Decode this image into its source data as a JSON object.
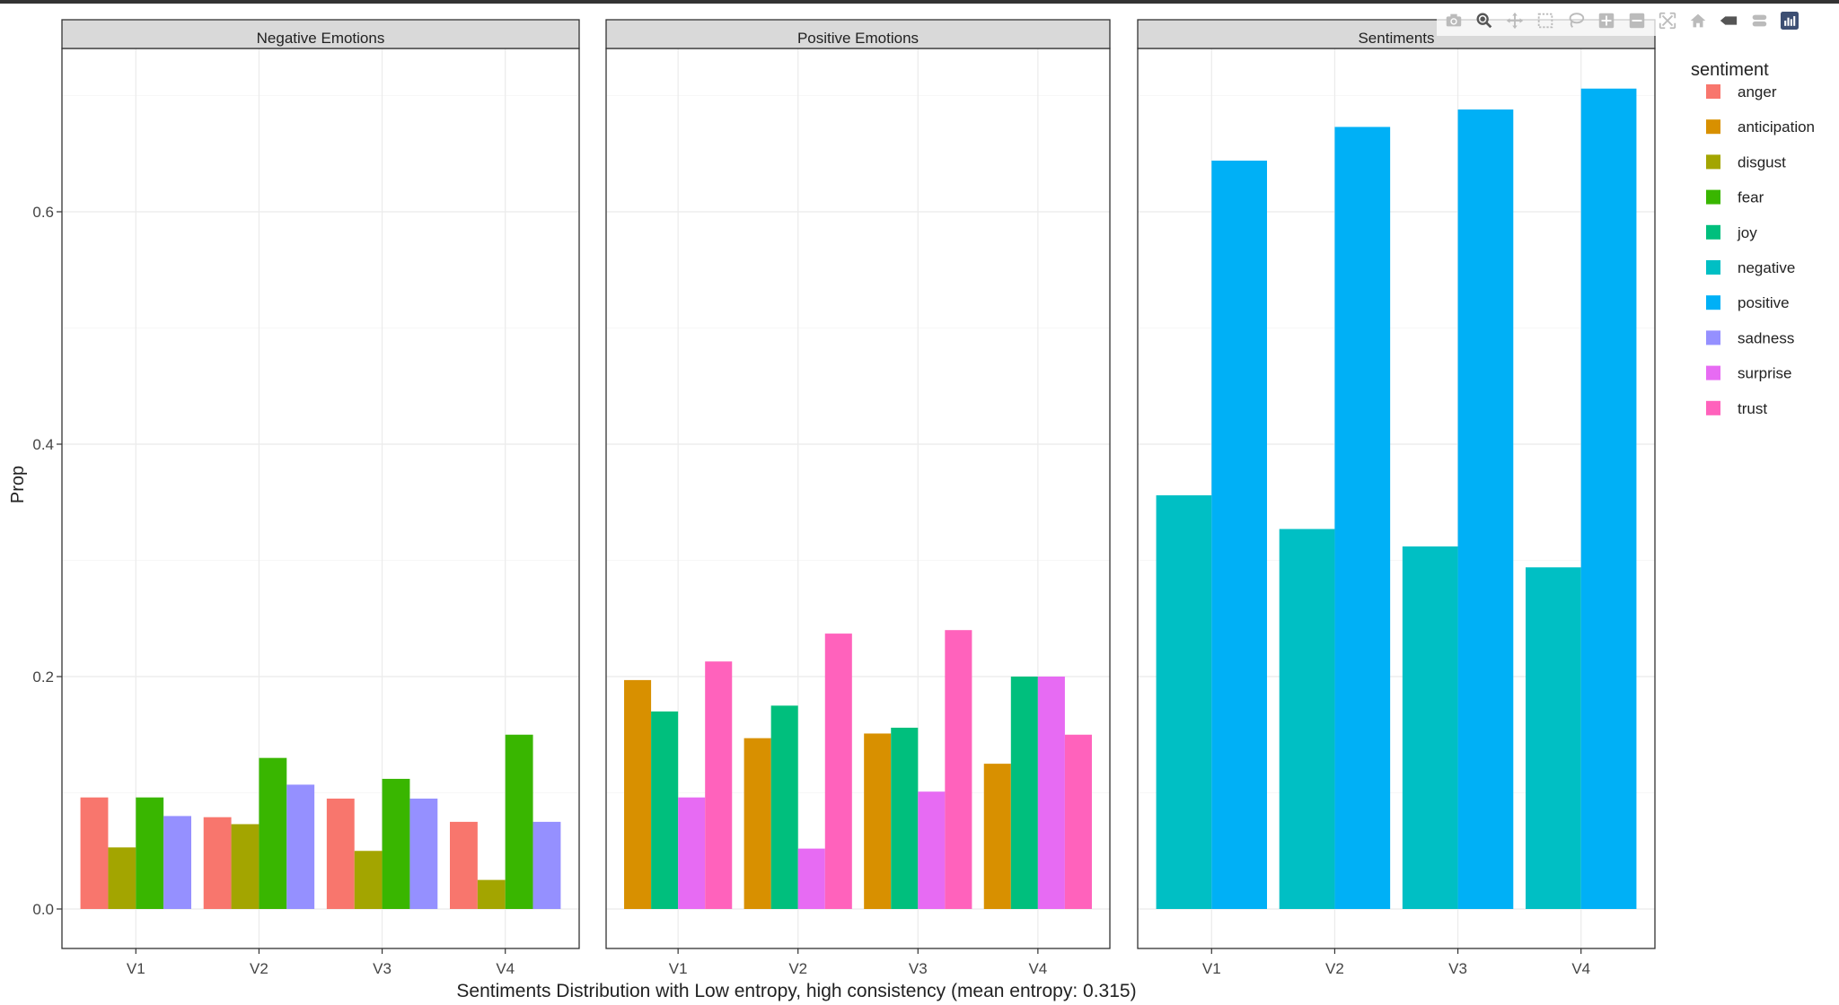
{
  "chart_data": {
    "type": "bar",
    "title": "",
    "xlabel": "Sentiments Distribution with Low entropy, high consistency (mean entropy: 0.315)",
    "ylabel": "Prop",
    "ylim": [
      0,
      0.75
    ],
    "y_ticks": [
      "0.0",
      "0.2",
      "0.4",
      "0.6"
    ],
    "grid": true,
    "legend": {
      "title": "sentiment",
      "position": "right",
      "items": [
        {
          "name": "anger",
          "color": "#F8766D"
        },
        {
          "name": "anticipation",
          "color": "#D89000"
        },
        {
          "name": "disgust",
          "color": "#A3A500"
        },
        {
          "name": "fear",
          "color": "#39B600"
        },
        {
          "name": "joy",
          "color": "#00BF7D"
        },
        {
          "name": "negative",
          "color": "#00BFC4"
        },
        {
          "name": "positive",
          "color": "#00B0F6"
        },
        {
          "name": "sadness",
          "color": "#9590FF"
        },
        {
          "name": "surprise",
          "color": "#E76BF3"
        },
        {
          "name": "trust",
          "color": "#FF62BC"
        }
      ]
    },
    "categories": [
      "V1",
      "V2",
      "V3",
      "V4"
    ],
    "panels": [
      {
        "title": "Negative Emotions",
        "series": [
          {
            "name": "anger",
            "values": [
              0.096,
              0.079,
              0.095,
              0.075
            ]
          },
          {
            "name": "disgust",
            "values": [
              0.053,
              0.073,
              0.05,
              0.025
            ]
          },
          {
            "name": "fear",
            "values": [
              0.096,
              0.13,
              0.112,
              0.15
            ]
          },
          {
            "name": "sadness",
            "values": [
              0.08,
              0.107,
              0.095,
              0.075
            ]
          }
        ]
      },
      {
        "title": "Positive Emotions",
        "series": [
          {
            "name": "anticipation",
            "values": [
              0.197,
              0.147,
              0.151,
              0.125
            ]
          },
          {
            "name": "joy",
            "values": [
              0.17,
              0.175,
              0.156,
              0.2
            ]
          },
          {
            "name": "surprise",
            "values": [
              0.096,
              0.052,
              0.101,
              0.2
            ]
          },
          {
            "name": "trust",
            "values": [
              0.213,
              0.237,
              0.24,
              0.15
            ]
          }
        ]
      },
      {
        "title": "Sentiments",
        "series": [
          {
            "name": "negative",
            "values": [
              0.356,
              0.327,
              0.312,
              0.294
            ]
          },
          {
            "name": "positive",
            "values": [
              0.644,
              0.673,
              0.688,
              0.706
            ]
          }
        ]
      }
    ]
  },
  "modebar": {
    "buttons": [
      {
        "name": "camera-icon"
      },
      {
        "name": "zoom-icon"
      },
      {
        "name": "pan-icon"
      },
      {
        "name": "box-select-icon"
      },
      {
        "name": "lasso-select-icon"
      },
      {
        "name": "zoom-in-icon"
      },
      {
        "name": "zoom-out-icon"
      },
      {
        "name": "autoscale-icon"
      },
      {
        "name": "home-icon"
      },
      {
        "name": "spike-lines-icon"
      },
      {
        "name": "compare-hover-icon"
      },
      {
        "name": "plotly-logo-icon"
      }
    ]
  }
}
